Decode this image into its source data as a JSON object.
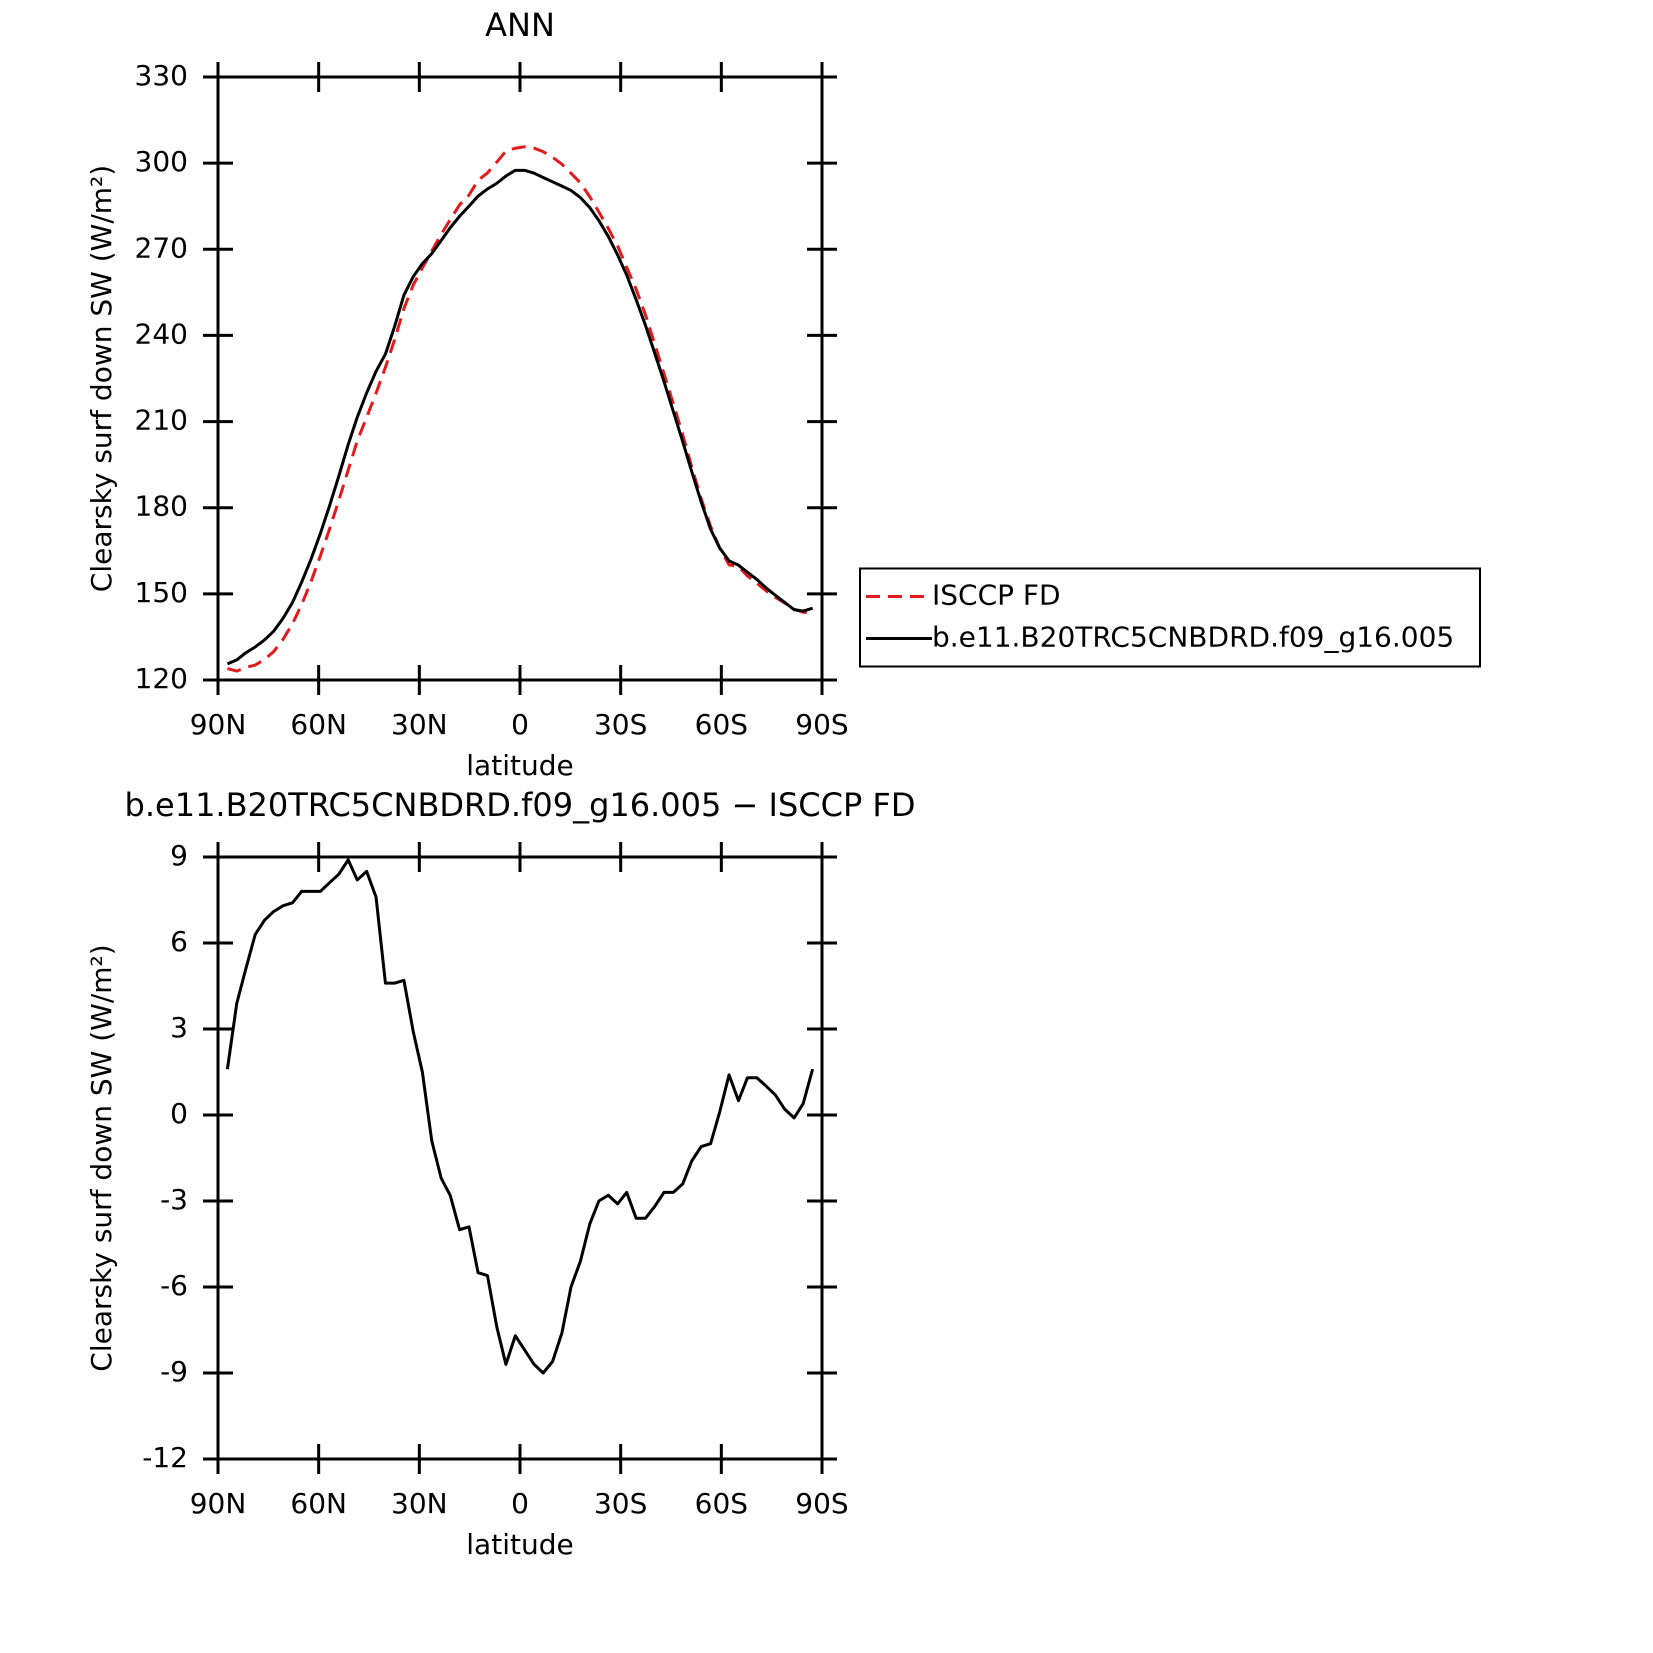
{
  "chart_data": [
    {
      "type": "line",
      "title": "ANN",
      "x_label": "latitude",
      "y_label": "Clearsky surf down SW (W/m²)",
      "x": [
        87.2,
        84.4,
        81.7,
        78.9,
        76.1,
        73.4,
        70.6,
        67.8,
        65.1,
        62.3,
        59.5,
        56.8,
        54.0,
        51.2,
        48.5,
        45.7,
        42.9,
        40.1,
        37.4,
        34.6,
        31.8,
        29.1,
        26.3,
        23.5,
        20.8,
        18.0,
        15.2,
        12.5,
        9.7,
        6.9,
        4.2,
        1.4,
        -1.4,
        -4.2,
        -6.9,
        -9.7,
        -12.5,
        -15.2,
        -18.0,
        -20.8,
        -23.5,
        -26.3,
        -29.1,
        -31.8,
        -34.6,
        -37.4,
        -40.1,
        -42.9,
        -45.7,
        -48.5,
        -51.2,
        -54.0,
        -56.8,
        -59.5,
        -62.3,
        -65.1,
        -67.8,
        -70.6,
        -73.4,
        -76.1,
        -78.9,
        -81.7,
        -84.4,
        -87.2
      ],
      "series": [
        {
          "name": "ISCCP FD",
          "color": "#e31a1c",
          "line_style": "dashed",
          "values": [
            124.0,
            123.1,
            124.4,
            125.2,
            127.2,
            129.9,
            134.2,
            139.6,
            146.2,
            154.2,
            163.2,
            172.4,
            182.6,
            193.1,
            203.3,
            211.5,
            219.9,
            228.9,
            238.4,
            249.3,
            257.6,
            263.5,
            269.4,
            275.2,
            280.3,
            285.5,
            288.9,
            294.0,
            296.6,
            300.4,
            304.2,
            305.2,
            305.7,
            305.2,
            304.0,
            302.1,
            299.6,
            296.5,
            293.1,
            288.3,
            283.0,
            277.3,
            271.1,
            263.7,
            256.1,
            247.1,
            237.2,
            226.7,
            216.2,
            205.4,
            194.1,
            183.1,
            173.5,
            165.9,
            160.1,
            159.5,
            156.2,
            153.7,
            151.0,
            148.8,
            146.8,
            144.6,
            143.6,
            143.4
          ]
        },
        {
          "name": "b.e11.B20TRC5CNBDRD.f09_g16.005",
          "color": "#000000",
          "line_style": "solid",
          "values": [
            125.6,
            127,
            129.5,
            131.5,
            134,
            137,
            141.5,
            147,
            154,
            162,
            171,
            180.5,
            191,
            202,
            211.5,
            220,
            227.5,
            233.5,
            243,
            254,
            260.5,
            265,
            268.5,
            273,
            277.5,
            281.5,
            285,
            288.5,
            291,
            293,
            295.5,
            297.5,
            297.5,
            296.5,
            295,
            293.5,
            292,
            290.5,
            288,
            284.5,
            280,
            274.5,
            268,
            261,
            252.5,
            243.5,
            234,
            224,
            213.5,
            203,
            192.5,
            182,
            172.5,
            166,
            161.5,
            160,
            157.5,
            155,
            152,
            149.5,
            147,
            144.5,
            144,
            145
          ]
        }
      ],
      "xlim": [
        90,
        -90
      ],
      "xticks": [
        {
          "value": 90,
          "label": "90N"
        },
        {
          "value": 60,
          "label": "60N"
        },
        {
          "value": 30,
          "label": "30N"
        },
        0,
        {
          "value": -30,
          "label": "30S"
        },
        {
          "value": -60,
          "label": "60S"
        },
        {
          "value": -90,
          "label": "90S"
        }
      ],
      "ylim": [
        120,
        330
      ],
      "yticks": [
        120,
        150,
        180,
        210,
        240,
        270,
        300,
        330
      ],
      "legend": "right"
    },
    {
      "type": "line",
      "title": "b.e11.B20TRC5CNBDRD.f09_g16.005 − ISCCP FD",
      "x_label": "latitude",
      "y_label": "Clearsky surf down SW (W/m²)",
      "x": [
        87.2,
        84.4,
        81.7,
        78.9,
        76.1,
        73.4,
        70.6,
        67.8,
        65.1,
        62.3,
        59.5,
        56.8,
        54.0,
        51.2,
        48.5,
        45.7,
        42.9,
        40.1,
        37.4,
        34.6,
        31.8,
        29.1,
        26.3,
        23.5,
        20.8,
        18.0,
        15.2,
        12.5,
        9.7,
        6.9,
        4.2,
        1.4,
        -1.4,
        -4.2,
        -6.9,
        -9.7,
        -12.5,
        -15.2,
        -18.0,
        -20.8,
        -23.5,
        -26.3,
        -29.1,
        -31.8,
        -34.6,
        -37.4,
        -40.1,
        -42.9,
        -45.7,
        -48.5,
        -51.2,
        -54.0,
        -56.8,
        -59.5,
        -62.3,
        -65.1,
        -67.8,
        -70.6,
        -73.4,
        -76.1,
        -78.9,
        -81.7,
        -84.4,
        -87.2
      ],
      "values": [
        1.6,
        3.9,
        5.1,
        6.3,
        6.8,
        7.1,
        7.3,
        7.4,
        7.8,
        7.8,
        7.8,
        8.1,
        8.4,
        8.9,
        8.2,
        8.5,
        7.6,
        4.6,
        4.6,
        4.7,
        2.9,
        1.5,
        -0.9,
        -2.2,
        -2.8,
        -4.0,
        -3.9,
        -5.5,
        -5.6,
        -7.4,
        -8.7,
        -7.7,
        -8.2,
        -8.7,
        -9.0,
        -8.6,
        -7.6,
        -6.0,
        -5.1,
        -3.8,
        -3.0,
        -2.8,
        -3.1,
        -2.7,
        -3.6,
        -3.6,
        -3.2,
        -2.7,
        -2.7,
        -2.4,
        -1.6,
        -1.1,
        -1.0,
        0.1,
        1.4,
        0.5,
        1.3,
        1.3,
        1.0,
        0.7,
        0.2,
        -0.1,
        0.4,
        1.6
      ],
      "color": "#000000",
      "xlim": [
        90,
        -90
      ],
      "xticks": [
        {
          "value": 90,
          "label": "90N"
        },
        {
          "value": 60,
          "label": "60N"
        },
        {
          "value": 30,
          "label": "30N"
        },
        0,
        {
          "value": -30,
          "label": "30S"
        },
        {
          "value": -60,
          "label": "60S"
        },
        {
          "value": -90,
          "label": "90S"
        }
      ],
      "ylim": [
        -12,
        9
      ],
      "yticks": [
        -12,
        -9,
        -6,
        -3,
        0,
        3,
        6,
        9
      ]
    }
  ]
}
